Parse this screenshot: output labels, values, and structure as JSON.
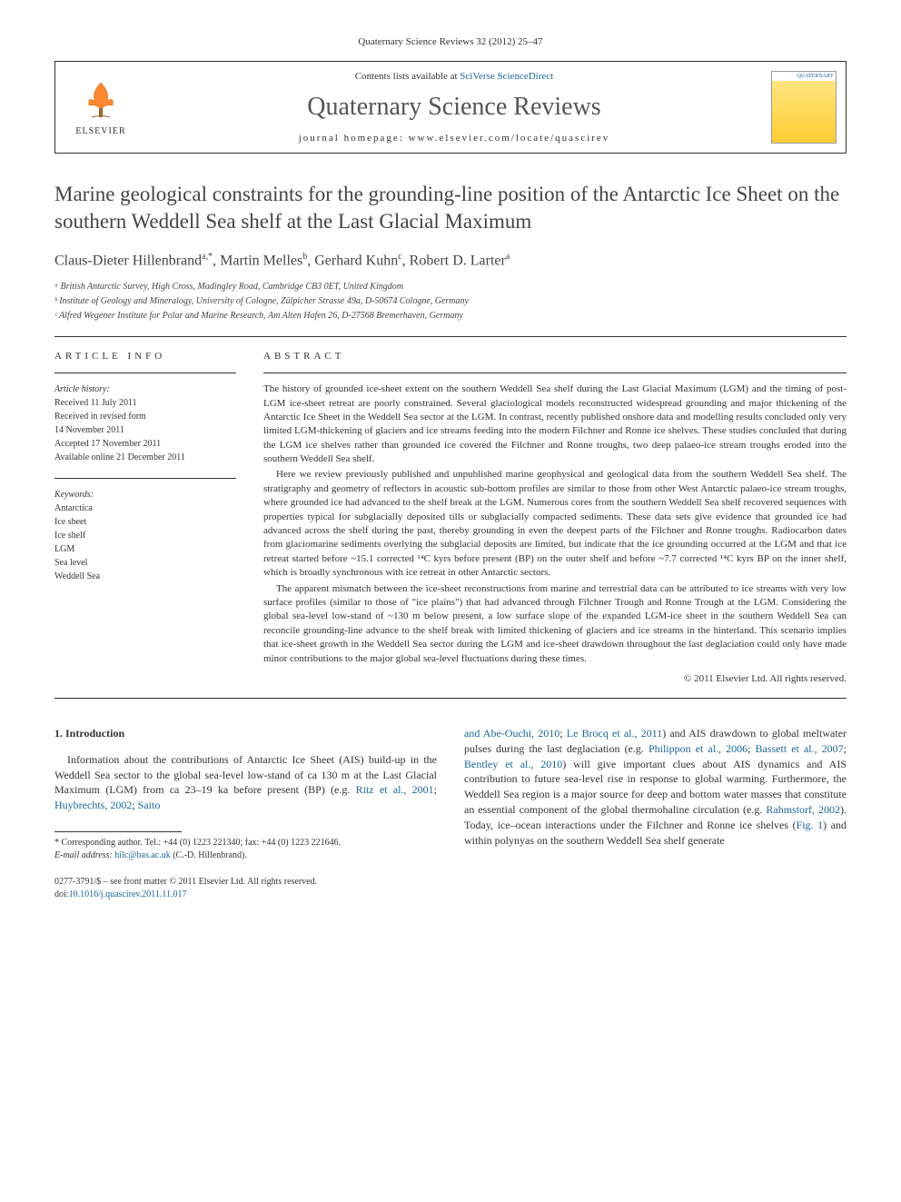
{
  "citation": "Quaternary Science Reviews 32 (2012) 25–47",
  "header": {
    "elsevier_label": "ELSEVIER",
    "contents_prefix": "Contents lists available at ",
    "contents_link": "SciVerse ScienceDirect",
    "journal_name": "Quaternary Science Reviews",
    "homepage_prefix": "journal homepage: ",
    "homepage_url": "www.elsevier.com/locate/quascirev",
    "cover_label": "QUATERNARY"
  },
  "article": {
    "title": "Marine geological constraints for the grounding-line position of the Antarctic Ice Sheet on the southern Weddell Sea shelf at the Last Glacial Maximum",
    "authors_html": "Claus-Dieter Hillenbrand<sup>a,*</sup>, Martin Melles<sup>b</sup>, Gerhard Kuhn<sup>c</sup>, Robert D. Larter<sup>a</sup>",
    "affiliations": [
      "ᵃ British Antarctic Survey, High Cross, Madingley Road, Cambridge CB3 0ET, United Kingdom",
      "ᵇ Institute of Geology and Mineralogy, University of Cologne, Zülpicher Strasse 49a, D-50674 Cologne, Germany",
      "ᶜ Alfred Wegener Institute for Polar and Marine Research, Am Alten Hafen 26, D-27568 Bremerhaven, Germany"
    ]
  },
  "info": {
    "header": "ARTICLE INFO",
    "history_label": "Article history:",
    "history": [
      "Received 11 July 2011",
      "Received in revised form",
      "14 November 2011",
      "Accepted 17 November 2011",
      "Available online 21 December 2011"
    ],
    "keywords_label": "Keywords:",
    "keywords": [
      "Antarctica",
      "Ice sheet",
      "Ice shelf",
      "LGM",
      "Sea level",
      "Weddell Sea"
    ]
  },
  "abstract": {
    "header": "ABSTRACT",
    "paragraphs": [
      "The history of grounded ice-sheet extent on the southern Weddell Sea shelf during the Last Glacial Maximum (LGM) and the timing of post-LGM ice-sheet retreat are poorly constrained. Several glaciological models reconstructed widespread grounding and major thickening of the Antarctic Ice Sheet in the Weddell Sea sector at the LGM. In contrast, recently published onshore data and modelling results concluded only very limited LGM-thickening of glaciers and ice streams feeding into the modern Filchner and Ronne ice shelves. These studies concluded that during the LGM ice shelves rather than grounded ice covered the Filchner and Ronne troughs, two deep palaeo-ice stream troughs eroded into the southern Weddell Sea shelf.",
      "Here we review previously published and unpublished marine geophysical and geological data from the southern Weddell Sea shelf. The stratigraphy and geometry of reflectors in acoustic sub-bottom profiles are similar to those from other West Antarctic palaeo-ice stream troughs, where grounded ice had advanced to the shelf break at the LGM. Numerous cores from the southern Weddell Sea shelf recovered sequences with properties typical for subglacially deposited tills or subglacially compacted sediments. These data sets give evidence that grounded ice had advanced across the shelf during the past, thereby grounding in even the deepest parts of the Filchner and Ronne troughs. Radiocarbon dates from glaciomarine sediments overlying the subglacial deposits are limited, but indicate that the ice grounding occurred at the LGM and that ice retreat started before ~15.1 corrected ¹⁴C kyrs before present (BP) on the outer shelf and before ~7.7 corrected ¹⁴C kyrs BP on the inner shelf, which is broadly synchronous with ice retreat in other Antarctic sectors.",
      "The apparent mismatch between the ice-sheet reconstructions from marine and terrestrial data can be attributed to ice streams with very low surface profiles (similar to those of \"ice plains\") that had advanced through Filchner Trough and Ronne Trough at the LGM. Considering the global sea-level low-stand of ~130 m below present, a low surface slope of the expanded LGM-ice sheet in the southern Weddell Sea can reconcile grounding-line advance to the shelf break with limited thickening of glaciers and ice streams in the hinterland. This scenario implies that ice-sheet growth in the Weddell Sea sector during the LGM and ice-sheet drawdown throughout the last deglaciation could only have made minor contributions to the major global sea-level fluctuations during these times."
    ],
    "copyright": "© 2011 Elsevier Ltd. All rights reserved."
  },
  "body": {
    "section_heading": "1. Introduction",
    "col1_text": "Information about the contributions of Antarctic Ice Sheet (AIS) build-up in the Weddell Sea sector to the global sea-level low-stand of ca 130 m at the Last Glacial Maximum (LGM) from ca 23–19 ka before present (BP) (e.g. ",
    "col1_refs": [
      "Ritz et al., 2001",
      "Huybrechts, 2002",
      "Saito"
    ],
    "col2_refs_start": [
      "and Abe-Ouchi, 2010",
      "Le Brocq et al., 2011"
    ],
    "col2_mid1": ") and AIS drawdown to global meltwater pulses during the last deglaciation (e.g. ",
    "col2_refs_mid": [
      "Philippon et al., 2006",
      "Bassett et al., 2007",
      "Bentley et al., 2010"
    ],
    "col2_mid2": ") will give important clues about AIS dynamics and AIS contribution to future sea-level rise in response to global warming. Furthermore, the Weddell Sea region is a major source for deep and bottom water masses that constitute an essential component of the global thermohaline circulation (e.g. ",
    "col2_ref_rahm": "Rahmstorf, 2002",
    "col2_end": "). Today, ice–ocean interactions under the Filchner and Ronne ice shelves (",
    "col2_fig": "Fig. 1",
    "col2_tail": ") and within polynyas on the southern Weddell Sea shelf generate"
  },
  "footnotes": {
    "corr": "* Corresponding author. Tel.: +44 (0) 1223 221340; fax: +44 (0) 1223 221646.",
    "email_label": "E-mail address: ",
    "email": "hilc@bas.ac.uk",
    "email_suffix": " (C.-D. Hillenbrand)."
  },
  "bottom": {
    "issn": "0277-3791/$ – see front matter © 2011 Elsevier Ltd. All rights reserved.",
    "doi_label": "doi:",
    "doi": "10.1016/j.quascirev.2011.11.017"
  },
  "colors": {
    "link": "#1a6699",
    "text": "#333333",
    "elsevier_orange": "#ff8833"
  }
}
